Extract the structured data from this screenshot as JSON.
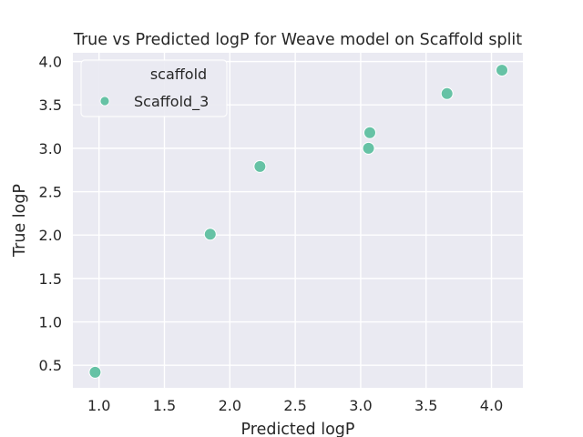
{
  "chart_data": {
    "type": "scatter",
    "title": "True vs Predicted logP for Weave model on Scaffold split",
    "xlabel": "Predicted logP",
    "ylabel": "True logP",
    "xlim": [
      0.8,
      4.24
    ],
    "ylim": [
      0.24,
      4.1
    ],
    "xticks": [
      1.0,
      1.5,
      2.0,
      2.5,
      3.0,
      3.5,
      4.0
    ],
    "yticks": [
      0.5,
      1.0,
      1.5,
      2.0,
      2.5,
      3.0,
      3.5,
      4.0
    ],
    "xtick_labels": [
      "1.0",
      "1.5",
      "2.0",
      "2.5",
      "3.0",
      "3.5",
      "4.0"
    ],
    "ytick_labels": [
      "0.5",
      "1.0",
      "1.5",
      "2.0",
      "2.5",
      "3.0",
      "3.5",
      "4.0"
    ],
    "grid": true,
    "legend": {
      "title": "scaffold",
      "placement": "top-left"
    },
    "series": [
      {
        "name": "Scaffold_3",
        "color": "#66c2a5",
        "points": [
          {
            "x": 0.97,
            "y": 0.42
          },
          {
            "x": 1.85,
            "y": 2.01
          },
          {
            "x": 2.23,
            "y": 2.79
          },
          {
            "x": 3.06,
            "y": 3.0
          },
          {
            "x": 3.07,
            "y": 3.18
          },
          {
            "x": 3.66,
            "y": 3.63
          },
          {
            "x": 4.08,
            "y": 3.9
          }
        ]
      }
    ]
  }
}
